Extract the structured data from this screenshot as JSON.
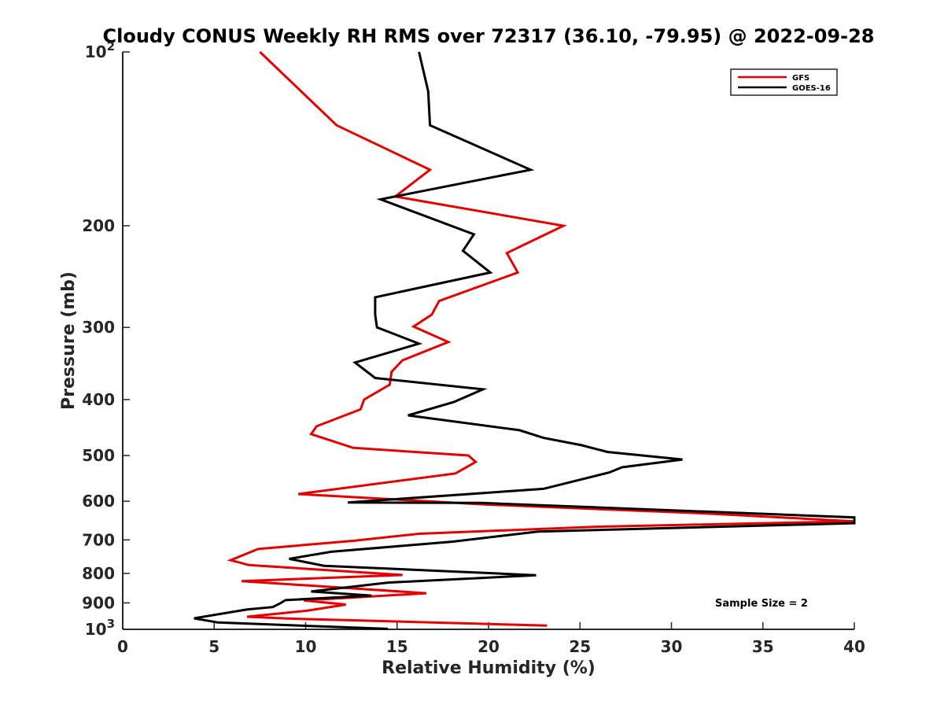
{
  "chart_data": {
    "type": "line",
    "title": "Cloudy CONUS Weekly RH RMS over 72317 (36.10, -79.95) @ 2022-09-28",
    "xlabel": "Relative Humidity (%)",
    "ylabel": "Pressure (mb)",
    "xlim": [
      0,
      40
    ],
    "ylim": [
      100,
      1000
    ],
    "y_scale": "log",
    "y_reversed": true,
    "x_ticks": [
      0,
      5,
      10,
      15,
      20,
      25,
      30,
      35,
      40
    ],
    "y_ticks": [
      {
        "value": 100,
        "base": "10",
        "exp": "2"
      },
      {
        "value": 200,
        "label": "200"
      },
      {
        "value": 300,
        "label": "300"
      },
      {
        "value": 400,
        "label": "400"
      },
      {
        "value": 500,
        "label": "500"
      },
      {
        "value": 600,
        "label": "600"
      },
      {
        "value": 700,
        "label": "700"
      },
      {
        "value": 800,
        "label": "800"
      },
      {
        "value": 900,
        "label": "900"
      },
      {
        "value": 1000,
        "base": "10",
        "exp": "3"
      }
    ],
    "legend_position": "top-right",
    "annotation": "Sample Size = 2",
    "series": [
      {
        "name": "GFS",
        "color": "#e50000",
        "points": [
          [
            7.5,
            100
          ],
          [
            11.7,
            134
          ],
          [
            16.8,
            160
          ],
          [
            14.9,
            178
          ],
          [
            24.1,
            200
          ],
          [
            21.0,
            223
          ],
          [
            21.6,
            241
          ],
          [
            17.3,
            270
          ],
          [
            16.9,
            285
          ],
          [
            15.9,
            299
          ],
          [
            17.8,
            318
          ],
          [
            15.3,
            342
          ],
          [
            14.7,
            358
          ],
          [
            14.6,
            377
          ],
          [
            13.2,
            400
          ],
          [
            13.0,
            416
          ],
          [
            10.6,
            445
          ],
          [
            10.3,
            459
          ],
          [
            12.6,
            485
          ],
          [
            18.9,
            500
          ],
          [
            19.3,
            513
          ],
          [
            18.2,
            537
          ],
          [
            9.6,
            583
          ],
          [
            19.9,
            608
          ],
          [
            31.9,
            630
          ],
          [
            40.0,
            650
          ],
          [
            26.0,
            664
          ],
          [
            16.2,
            683
          ],
          [
            12.7,
            702
          ],
          [
            7.4,
            726
          ],
          [
            5.9,
            759
          ],
          [
            6.9,
            774
          ],
          [
            15.3,
            805
          ],
          [
            6.5,
            825
          ],
          [
            16.6,
            866
          ],
          [
            9.9,
            891
          ],
          [
            12.2,
            906
          ],
          [
            10.1,
            928
          ],
          [
            6.8,
            951
          ],
          [
            9.0,
            958
          ],
          [
            23.2,
            985
          ]
        ]
      },
      {
        "name": "GOES-16",
        "color": "#000000",
        "points": [
          [
            16.2,
            100
          ],
          [
            16.7,
            117
          ],
          [
            16.8,
            134
          ],
          [
            22.3,
            160
          ],
          [
            14.1,
            180
          ],
          [
            19.2,
            207
          ],
          [
            18.6,
            221
          ],
          [
            20.1,
            241
          ],
          [
            13.8,
            266
          ],
          [
            13.8,
            285
          ],
          [
            13.9,
            300
          ],
          [
            16.2,
            320
          ],
          [
            12.7,
            345
          ],
          [
            13.8,
            367
          ],
          [
            19.7,
            384
          ],
          [
            18.1,
            404
          ],
          [
            15.6,
            426
          ],
          [
            21.7,
            452
          ],
          [
            23.0,
            466
          ],
          [
            25.1,
            480
          ],
          [
            26.5,
            493
          ],
          [
            30.6,
            508
          ],
          [
            27.3,
            524
          ],
          [
            26.6,
            535
          ],
          [
            23.0,
            571
          ],
          [
            12.3,
            603
          ],
          [
            19.6,
            604
          ],
          [
            40.0,
            640
          ],
          [
            40.0,
            655
          ],
          [
            22.7,
            677
          ],
          [
            18.0,
            705
          ],
          [
            11.4,
            734
          ],
          [
            9.1,
            755
          ],
          [
            11.0,
            776
          ],
          [
            22.6,
            806
          ],
          [
            14.5,
            830
          ],
          [
            10.3,
            860
          ],
          [
            13.6,
            874
          ],
          [
            8.9,
            890
          ],
          [
            8.6,
            902
          ],
          [
            8.2,
            915
          ],
          [
            6.8,
            924
          ],
          [
            3.9,
            957
          ],
          [
            5.2,
            973
          ],
          [
            14.5,
            998
          ]
        ]
      }
    ]
  }
}
